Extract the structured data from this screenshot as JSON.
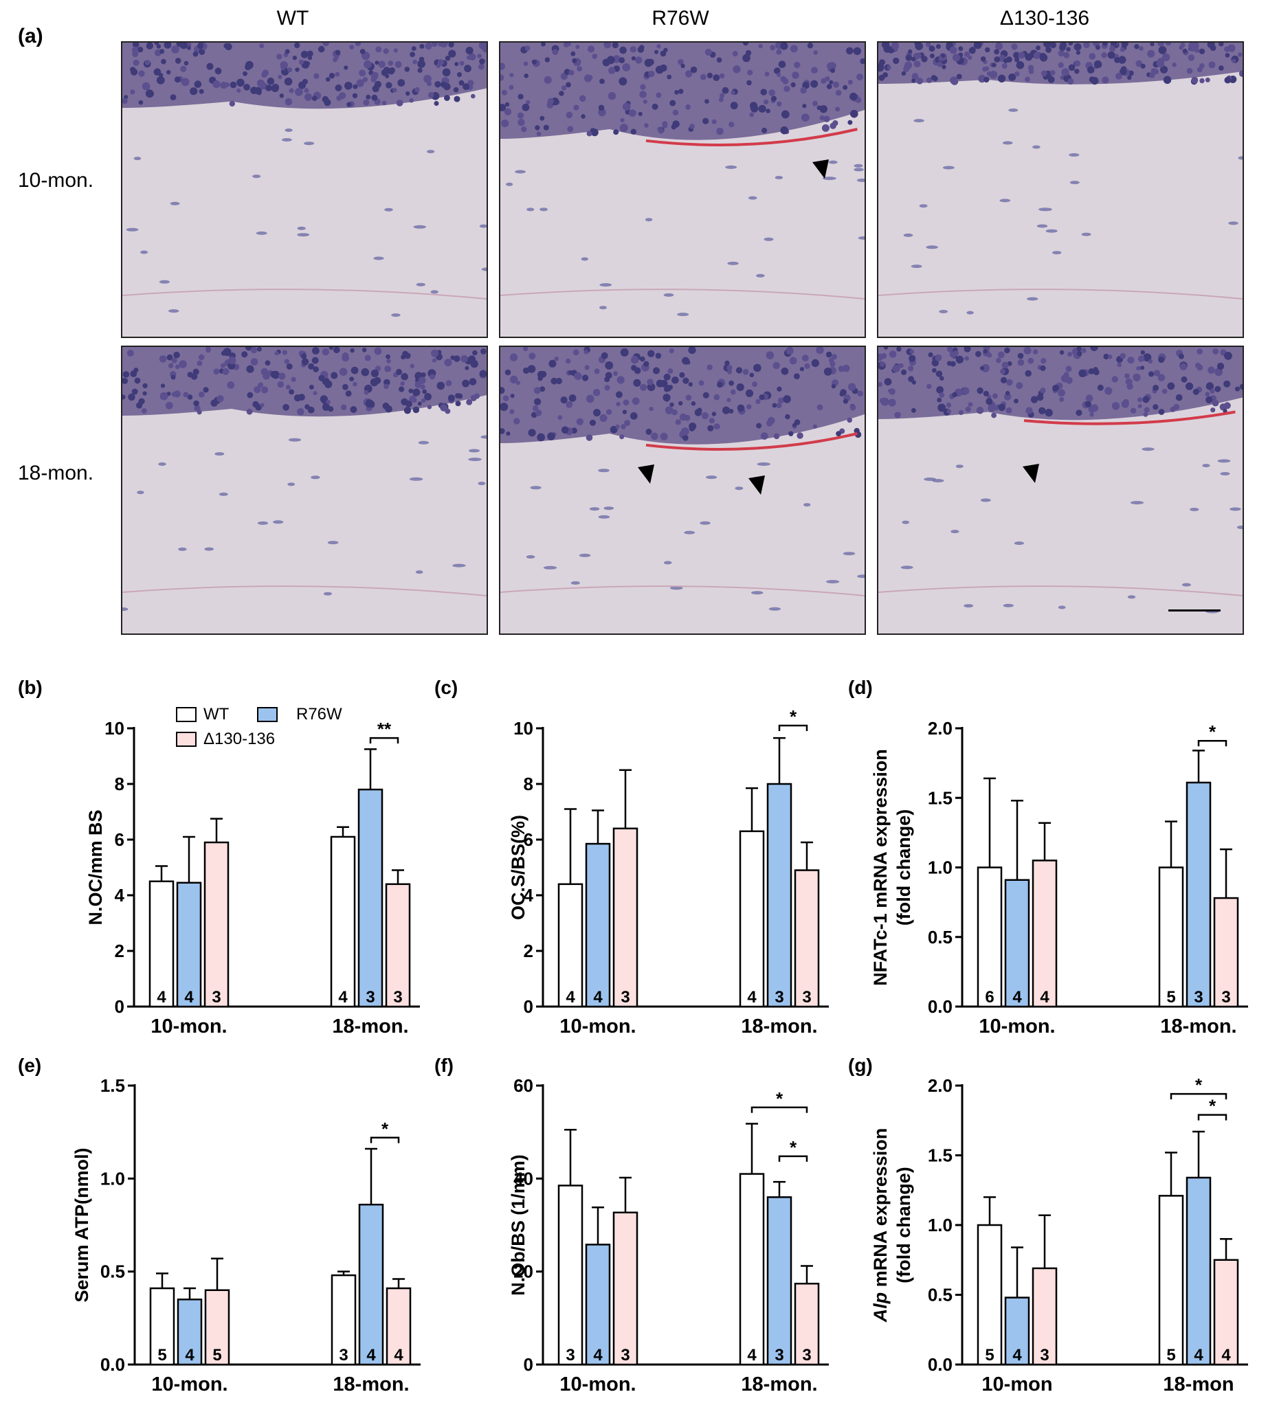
{
  "figure": {
    "panel_a": {
      "label": "(a)",
      "columns": [
        "WT",
        "R76W",
        "Δ130-136"
      ],
      "rows": [
        "10-mon.",
        "18-mon."
      ]
    },
    "legend": {
      "items": [
        {
          "name": "WT",
          "color": "#ffffff"
        },
        {
          "name": "R76W",
          "color": "#9cc3ee"
        },
        {
          "name": "Δ130-136",
          "color": "#fde0e0"
        }
      ]
    }
  },
  "chart_data": [
    {
      "panel": "(b)",
      "type": "bar",
      "ylabel": "N.OC/mm BS",
      "ylim": [
        0,
        10
      ],
      "yticks": [
        "0",
        "2",
        "4",
        "6",
        "8",
        "10"
      ],
      "categories": [
        "10-mon.",
        "18-mon."
      ],
      "series": [
        {
          "name": "WT",
          "values": [
            4.5,
            6.1
          ],
          "errors": [
            0.55,
            0.35
          ],
          "n": [
            "4",
            "4"
          ]
        },
        {
          "name": "R76W",
          "values": [
            4.45,
            7.8
          ],
          "errors": [
            1.65,
            1.45
          ],
          "n": [
            "4",
            "3"
          ]
        },
        {
          "name": "Δ130-136",
          "values": [
            5.9,
            4.4
          ],
          "errors": [
            0.85,
            0.5
          ],
          "n": [
            "3",
            "3"
          ]
        }
      ],
      "significance": [
        {
          "cat": 1,
          "from": 1,
          "to": 2,
          "label": "**",
          "y": 9.65
        }
      ]
    },
    {
      "panel": "(c)",
      "type": "bar",
      "ylabel": "OC.S/BS(%)",
      "ylim": [
        0,
        10
      ],
      "yticks": [
        "0",
        "2",
        "4",
        "6",
        "8",
        "10"
      ],
      "categories": [
        "10-mon.",
        "18-mon."
      ],
      "series": [
        {
          "name": "WT",
          "values": [
            4.4,
            6.3
          ],
          "errors": [
            2.7,
            1.55
          ],
          "n": [
            "4",
            "4"
          ]
        },
        {
          "name": "R76W",
          "values": [
            5.85,
            8.0
          ],
          "errors": [
            1.2,
            1.65
          ],
          "n": [
            "4",
            "3"
          ]
        },
        {
          "name": "Δ130-136",
          "values": [
            6.4,
            4.9
          ],
          "errors": [
            2.1,
            1.0
          ],
          "n": [
            "3",
            "3"
          ]
        }
      ],
      "significance": [
        {
          "cat": 1,
          "from": 1,
          "to": 2,
          "label": "*",
          "y": 10.1
        }
      ]
    },
    {
      "panel": "(d)",
      "type": "bar",
      "ylabel_lines": [
        "NFATc-1 mRNA expression",
        "(fold change)"
      ],
      "ylim": [
        0,
        2.0
      ],
      "yticks": [
        "0.0",
        "0.5",
        "1.0",
        "1.5",
        "2.0"
      ],
      "categories": [
        "10-mon.",
        "18-mon."
      ],
      "series": [
        {
          "name": "WT",
          "values": [
            1.0,
            1.0
          ],
          "errors": [
            0.64,
            0.33
          ],
          "n": [
            "6",
            "5"
          ]
        },
        {
          "name": "R76W",
          "values": [
            0.91,
            1.61
          ],
          "errors": [
            0.57,
            0.23
          ],
          "n": [
            "4",
            "3"
          ]
        },
        {
          "name": "Δ130-136",
          "values": [
            1.05,
            0.78
          ],
          "errors": [
            0.27,
            0.35
          ],
          "n": [
            "4",
            "3"
          ]
        }
      ],
      "significance": [
        {
          "cat": 1,
          "from": 1,
          "to": 2,
          "label": "*",
          "y": 1.91
        }
      ]
    },
    {
      "panel": "(e)",
      "type": "bar",
      "ylabel": "Serum ATP(nmol)",
      "ylim": [
        0,
        1.5
      ],
      "yticks": [
        "0.0",
        "0.5",
        "1.0",
        "1.5"
      ],
      "categories": [
        "10-mon.",
        "18-mon."
      ],
      "series": [
        {
          "name": "WT",
          "values": [
            0.41,
            0.48
          ],
          "errors": [
            0.08,
            0.02
          ],
          "n": [
            "5",
            "3"
          ]
        },
        {
          "name": "R76W",
          "values": [
            0.35,
            0.86
          ],
          "errors": [
            0.06,
            0.3
          ],
          "n": [
            "4",
            "4"
          ]
        },
        {
          "name": "Δ130-136",
          "values": [
            0.4,
            0.41
          ],
          "errors": [
            0.17,
            0.05
          ],
          "n": [
            "5",
            "4"
          ]
        }
      ],
      "significance": [
        {
          "cat": 1,
          "from": 1,
          "to": 2,
          "label": "*",
          "y": 1.22
        }
      ]
    },
    {
      "panel": "(f)",
      "type": "bar",
      "ylabel": "N.Ob/BS (1/mm)",
      "ylim": [
        0,
        60
      ],
      "yticks": [
        "0",
        "20",
        "40",
        "60"
      ],
      "categories": [
        "10-mon.",
        "18-mon."
      ],
      "series": [
        {
          "name": "WT",
          "values": [
            38.5,
            41.0
          ],
          "errors": [
            12.0,
            10.8
          ],
          "n": [
            "3",
            "4"
          ]
        },
        {
          "name": "R76W",
          "values": [
            25.8,
            36.0
          ],
          "errors": [
            8.0,
            3.3
          ],
          "n": [
            "4",
            "3"
          ]
        },
        {
          "name": "Δ130-136",
          "values": [
            32.7,
            17.4
          ],
          "errors": [
            7.5,
            3.8
          ],
          "n": [
            "3",
            "3"
          ]
        }
      ],
      "significance": [
        {
          "cat": 1,
          "from": 0,
          "to": 2,
          "label": "*",
          "y": 55.3
        },
        {
          "cat": 1,
          "from": 1,
          "to": 2,
          "label": "*",
          "y": 44.8
        }
      ]
    },
    {
      "panel": "(g)",
      "type": "bar",
      "ylabel_italic": "Alp",
      "ylabel_lines": [
        " mRNA expression",
        "(fold change)"
      ],
      "ylim": [
        0,
        2.0
      ],
      "yticks": [
        "0.0",
        "0.5",
        "1.0",
        "1.5",
        "2.0"
      ],
      "categories": [
        "10-mon",
        "18-mon"
      ],
      "series": [
        {
          "name": "WT",
          "values": [
            1.0,
            1.21
          ],
          "errors": [
            0.2,
            0.31
          ],
          "n": [
            "5",
            "5"
          ]
        },
        {
          "name": "R76W",
          "values": [
            0.48,
            1.34
          ],
          "errors": [
            0.36,
            0.33
          ],
          "n": [
            "4",
            "4"
          ]
        },
        {
          "name": "Δ130-136",
          "values": [
            0.69,
            0.75
          ],
          "errors": [
            0.38,
            0.15
          ],
          "n": [
            "3",
            "4"
          ]
        }
      ],
      "significance": [
        {
          "cat": 1,
          "from": 0,
          "to": 2,
          "label": "*",
          "y": 1.94
        },
        {
          "cat": 1,
          "from": 1,
          "to": 2,
          "label": "*",
          "y": 1.79
        }
      ]
    }
  ]
}
